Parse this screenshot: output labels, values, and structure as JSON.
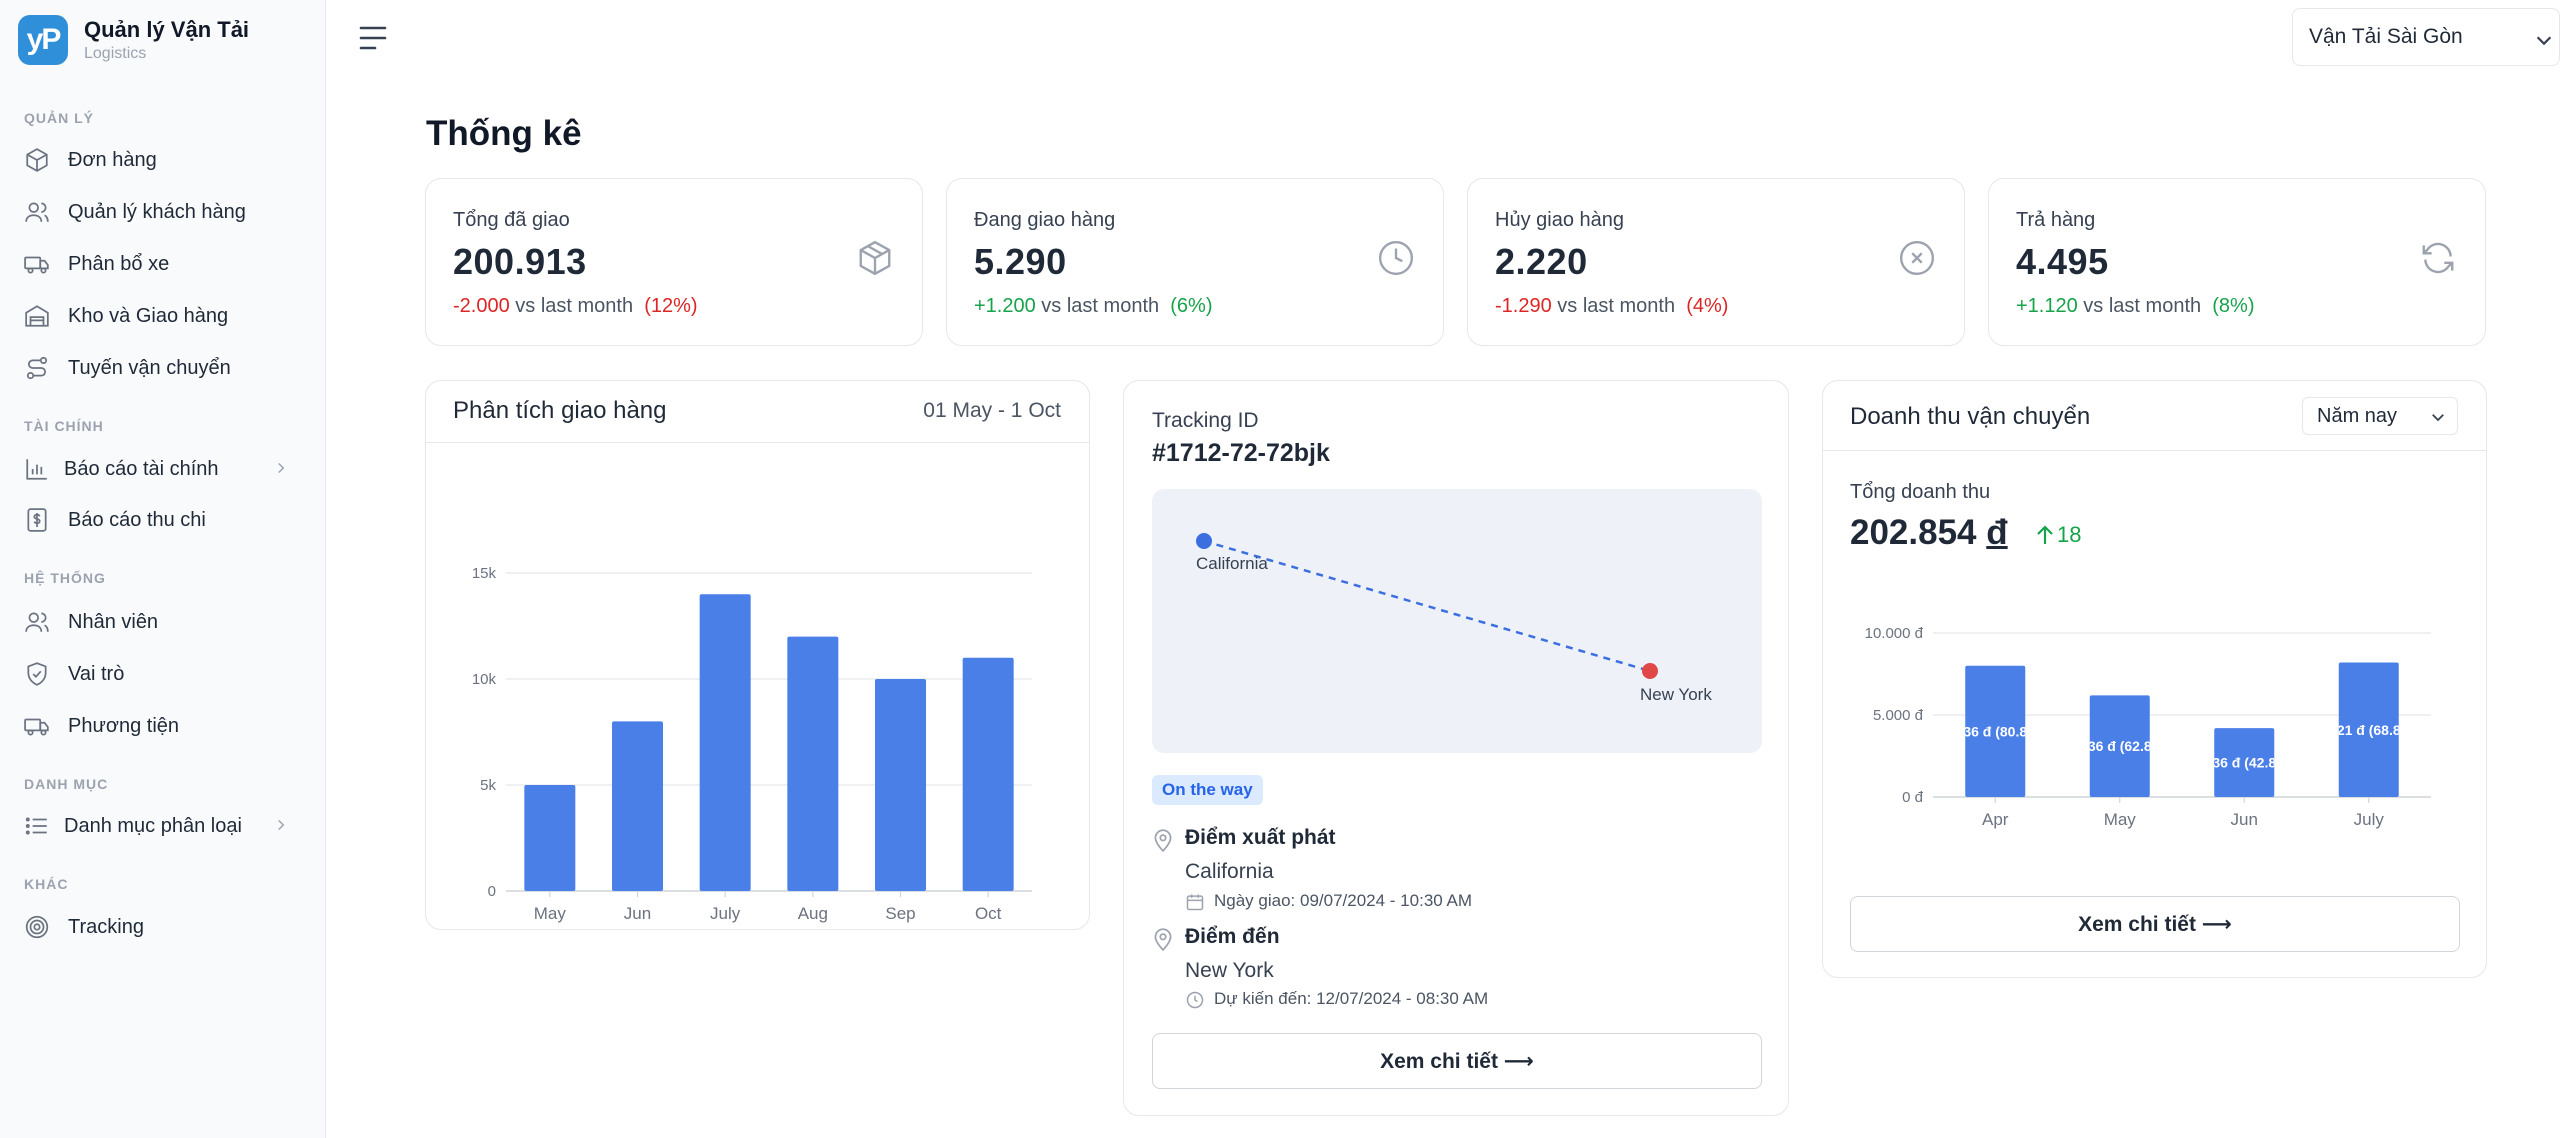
{
  "brand": {
    "name": "Quản lý Vận Tải",
    "subtitle": "Logistics",
    "logo_text": "yP"
  },
  "sidebar": {
    "sections": [
      {
        "label": "QUẢN LÝ",
        "items": [
          {
            "label": "Đơn hàng",
            "icon": "box-icon"
          },
          {
            "label": "Quản lý khách hàng",
            "icon": "users-icon"
          },
          {
            "label": "Phân bổ xe",
            "icon": "truck-icon"
          },
          {
            "label": "Kho và Giao hàng",
            "icon": "warehouse-icon"
          },
          {
            "label": "Tuyến vận chuyển",
            "icon": "route-icon"
          }
        ]
      },
      {
        "label": "TÀI CHÍNH",
        "items": [
          {
            "label": "Báo cáo tài chính",
            "icon": "bar-chart-icon",
            "has_submenu": true
          },
          {
            "label": "Báo cáo thu chi",
            "icon": "dollar-doc-icon"
          }
        ]
      },
      {
        "label": "HỆ THỐNG",
        "items": [
          {
            "label": "Nhân viên",
            "icon": "users-icon"
          },
          {
            "label": "Vai trò",
            "icon": "shield-check-icon"
          },
          {
            "label": "Phương tiện",
            "icon": "truck-icon"
          }
        ]
      },
      {
        "label": "DANH MỤC",
        "items": [
          {
            "label": "Danh mục phân loại",
            "icon": "list-icon",
            "has_submenu": true
          }
        ]
      },
      {
        "label": "KHÁC",
        "items": [
          {
            "label": "Tracking",
            "icon": "target-icon"
          }
        ]
      }
    ]
  },
  "header": {
    "company_select": "Vận Tải Sài Gòn"
  },
  "page_title": "Thống kê",
  "stats": [
    {
      "label": "Tổng đã giao",
      "value": "200.913",
      "change": "-2.000",
      "vs": "vs last month",
      "percent": "(12%)",
      "trend": "down",
      "icon": "box-icon"
    },
    {
      "label": "Đang giao hàng",
      "value": "5.290",
      "change": "+1.200",
      "vs": "vs last month",
      "percent": "(6%)",
      "trend": "up",
      "icon": "clock-icon"
    },
    {
      "label": "Hủy giao hàng",
      "value": "2.220",
      "change": "-1.290",
      "vs": "vs last month",
      "percent": "(4%)",
      "trend": "down",
      "icon": "x-circle-icon"
    },
    {
      "label": "Trả hàng",
      "value": "4.495",
      "change": "+1.120",
      "vs": "vs last month",
      "percent": "(8%)",
      "trend": "up",
      "icon": "refresh-icon"
    }
  ],
  "delivery_analysis": {
    "title": "Phân tích giao hàng",
    "date_range": "01 May - 1 Oct"
  },
  "tracking": {
    "label": "Tracking ID",
    "id": "#1712-72-72bjk",
    "origin_city_map": "California",
    "dest_city_map": "New York",
    "status": "On the way",
    "origin_title": "Điểm xuất phát",
    "origin_city": "California",
    "origin_date": "Ngày giao: 09/07/2024 - 10:30 AM",
    "dest_title": "Điểm đến",
    "dest_city": "New York",
    "dest_date": "Dự kiến đến: 12/07/2024 - 08:30 AM",
    "detail_button": "Xem chi tiết ⟶"
  },
  "revenue": {
    "title": "Doanh thu vận chuyển",
    "period_select": "Năm nay",
    "total_label": "Tổng doanh thu",
    "total_value": "202.854",
    "currency": "đ",
    "change": "18",
    "detail_button": "Xem chi tiết ⟶"
  },
  "colors": {
    "accent": "#4a7fe8",
    "positive": "#16a34a",
    "negative": "#dc2626",
    "map_origin": "#3b6fe0",
    "map_dest": "#e04848"
  },
  "chart_data": [
    {
      "type": "bar",
      "title": "Phân tích giao hàng",
      "categories": [
        "May",
        "Jun",
        "July",
        "Aug",
        "Sep",
        "Oct"
      ],
      "values": [
        5000,
        8000,
        14000,
        12000,
        10000,
        11000
      ],
      "ylim": [
        0,
        15000
      ],
      "yticks": [
        0,
        5000,
        10000,
        15000
      ],
      "ytick_labels": [
        "0",
        "5k",
        "10k",
        "15k"
      ],
      "grid": true
    },
    {
      "type": "bar",
      "title": "Doanh thu vận chuyển",
      "categories": [
        "Apr",
        "May",
        "Jun",
        "July"
      ],
      "values": [
        8000,
        6200,
        4200,
        8200
      ],
      "data_labels": [
        "36 đ (80.8",
        "36 đ (62.8",
        "36 đ (42.8",
        "21 đ (68.8"
      ],
      "ylim": [
        0,
        10000
      ],
      "yticks": [
        0,
        5000,
        10000
      ],
      "ytick_labels": [
        "0 đ",
        "5.000 đ",
        "10.000 đ"
      ],
      "grid": true
    }
  ]
}
